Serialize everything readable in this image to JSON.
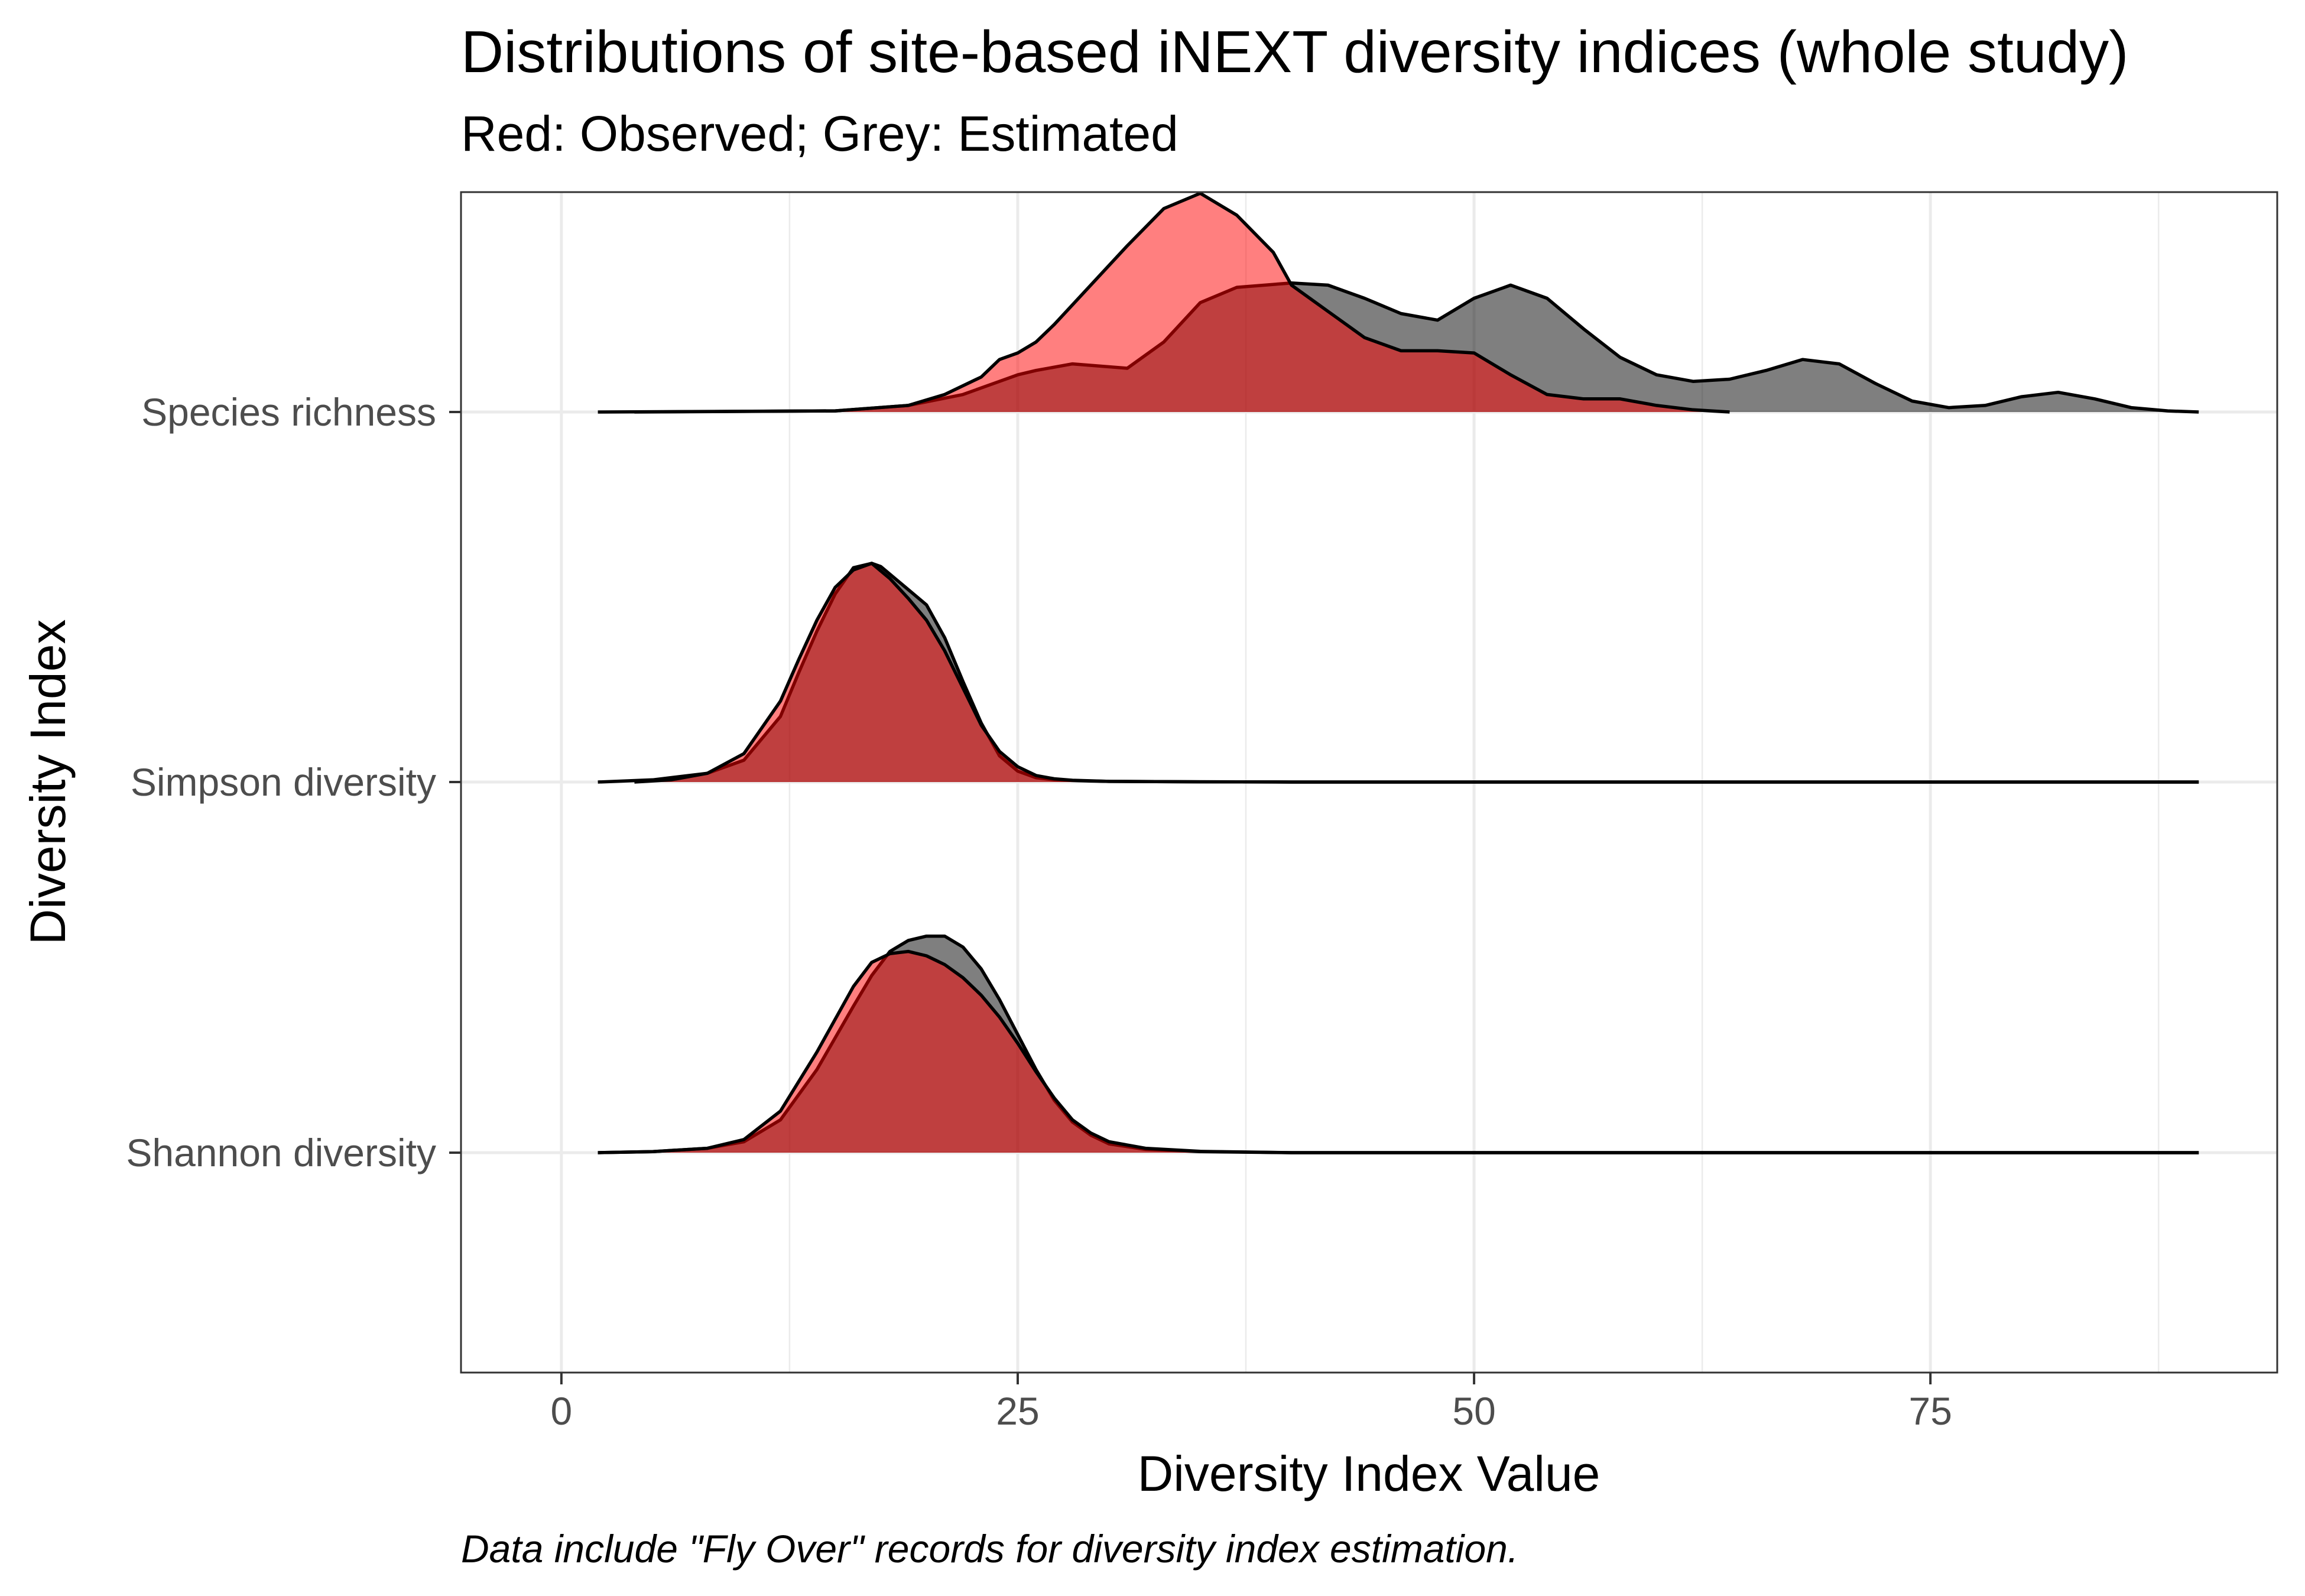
{
  "chart_data": {
    "type": "ridgeline-density",
    "title": "Distributions of site-based iNEXT diversity indices (whole study)",
    "subtitle": "Red: Observed;  Grey: Estimated",
    "xlabel": "Diversity Index Value",
    "ylabel": "Diversity Index",
    "caption": "Data include \"Fly Over\" records for diversity index estimation.",
    "xlim": [
      -5.5,
      94
    ],
    "x_ticks": [
      0,
      25,
      50,
      75
    ],
    "categories": [
      "Species richness",
      "Simpson diversity",
      "Shannon diversity"
    ],
    "grid": true,
    "colors": {
      "observed": "#ff0000",
      "estimated": "#000000",
      "observed_fill_opacity": 0.5,
      "estimated_fill_opacity": 0.5
    },
    "ridges": [
      {
        "category": "Species richness",
        "estimated": {
          "x": [
            2,
            15,
            19,
            22,
            24,
            25,
            26,
            28,
            31,
            33,
            35,
            37,
            40,
            42,
            44,
            46,
            48,
            50,
            52,
            54,
            56,
            58,
            60,
            62,
            64,
            66,
            68,
            70,
            72,
            74,
            76,
            78,
            80,
            82,
            84,
            86,
            88,
            89.7
          ],
          "y": [
            0,
            0.005,
            0.03,
            0.08,
            0.14,
            0.17,
            0.19,
            0.22,
            0.2,
            0.32,
            0.5,
            0.57,
            0.59,
            0.58,
            0.52,
            0.45,
            0.42,
            0.52,
            0.58,
            0.52,
            0.38,
            0.25,
            0.17,
            0.14,
            0.15,
            0.19,
            0.24,
            0.22,
            0.13,
            0.05,
            0.02,
            0.03,
            0.07,
            0.09,
            0.06,
            0.02,
            0.005,
            0
          ]
        },
        "observed": {
          "x": [
            4,
            15,
            19,
            21,
            23,
            24,
            25,
            26,
            27,
            29,
            31,
            33,
            35,
            37,
            39,
            40,
            42,
            44,
            46,
            48,
            50,
            52,
            54,
            56,
            58,
            60,
            62,
            64
          ],
          "y": [
            0,
            0.005,
            0.03,
            0.08,
            0.16,
            0.24,
            0.27,
            0.32,
            0.4,
            0.58,
            0.76,
            0.93,
            1.0,
            0.9,
            0.73,
            0.58,
            0.46,
            0.34,
            0.28,
            0.28,
            0.27,
            0.17,
            0.08,
            0.06,
            0.06,
            0.03,
            0.01,
            0
          ]
        }
      },
      {
        "category": "Simpson diversity",
        "estimated": {
          "x": [
            2,
            5,
            8,
            10,
            12,
            13,
            14,
            15,
            16,
            17,
            17.5,
            18,
            19,
            20,
            21,
            22,
            23,
            24,
            25,
            26,
            27,
            28,
            29,
            30,
            35,
            40,
            50,
            60,
            70,
            80,
            89.7
          ],
          "y": [
            0,
            0.01,
            0.04,
            0.1,
            0.3,
            0.5,
            0.69,
            0.86,
            0.98,
            1.0,
            0.985,
            0.95,
            0.88,
            0.81,
            0.66,
            0.46,
            0.27,
            0.12,
            0.05,
            0.02,
            0.01,
            0.007,
            0.005,
            0.003,
            0.001,
            0,
            0,
            0,
            0,
            0,
            0
          ]
        },
        "observed": {
          "x": [
            4,
            6,
            8,
            10,
            12,
            13,
            14,
            15,
            16,
            17,
            18,
            19,
            20,
            21,
            22,
            23,
            24,
            25,
            26,
            27,
            28,
            30,
            35,
            40,
            50,
            60,
            70,
            80,
            89.7
          ],
          "y": [
            0,
            0.01,
            0.04,
            0.13,
            0.37,
            0.56,
            0.74,
            0.89,
            0.97,
            1.0,
            0.93,
            0.84,
            0.74,
            0.6,
            0.43,
            0.26,
            0.14,
            0.07,
            0.03,
            0.015,
            0.008,
            0.003,
            0.001,
            0,
            0,
            0,
            0,
            0,
            0
          ]
        }
      },
      {
        "category": "Shannon diversity",
        "estimated": {
          "x": [
            2,
            5,
            8,
            10,
            12,
            14,
            16,
            17,
            18,
            19,
            20,
            21,
            22,
            23,
            24,
            25,
            26,
            27,
            28,
            29,
            30,
            32,
            35,
            40,
            50,
            60,
            70,
            80,
            89.7
          ],
          "y": [
            0,
            0.005,
            0.02,
            0.05,
            0.15,
            0.38,
            0.67,
            0.81,
            0.92,
            0.97,
            0.99,
            0.99,
            0.94,
            0.84,
            0.7,
            0.54,
            0.38,
            0.24,
            0.14,
            0.08,
            0.04,
            0.015,
            0.005,
            0,
            0,
            0,
            0,
            0,
            0
          ]
        },
        "observed": {
          "x": [
            2,
            5,
            8,
            10,
            12,
            14,
            16,
            17,
            18,
            19,
            20,
            21,
            22,
            23,
            24,
            25,
            26,
            27,
            28,
            29,
            30,
            32,
            35,
            40,
            50,
            60,
            70,
            80,
            89.7
          ],
          "y": [
            0,
            0.005,
            0.02,
            0.06,
            0.19,
            0.46,
            0.76,
            0.87,
            0.91,
            0.92,
            0.9,
            0.86,
            0.8,
            0.72,
            0.62,
            0.5,
            0.37,
            0.25,
            0.15,
            0.09,
            0.05,
            0.02,
            0.006,
            0,
            0,
            0,
            0,
            0,
            0
          ]
        }
      }
    ]
  }
}
